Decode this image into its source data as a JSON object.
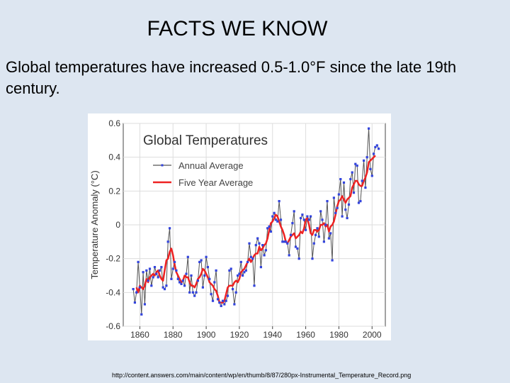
{
  "slide": {
    "title": "FACTS WE KNOW",
    "body": "Global temperatures have increased 0.5-1.0°F since the late 19th century.",
    "source": "http://content.answers.com/main/content/wp/en/thumb/8/87/280px-Instrumental_Temperature_Record.png"
  },
  "colors": {
    "background": "#dde6f1",
    "annual_line": "#555555",
    "annual_marker": "#3344dd",
    "five_year_line": "#ee2222",
    "grid": "#dddddd"
  },
  "chart_data": {
    "type": "line",
    "title": "Global Temperatures",
    "xlabel": "",
    "ylabel": "Temperature Anomaly (°C)",
    "xlim": [
      1850,
      2008
    ],
    "ylim": [
      -0.6,
      0.6
    ],
    "x_ticks": [
      1860,
      1880,
      1900,
      1920,
      1940,
      1960,
      1980,
      2000
    ],
    "y_ticks": [
      -0.6,
      -0.4,
      -0.2,
      0,
      0.2,
      0.4,
      0.6
    ],
    "grid": true,
    "legend_position": "top-left",
    "series": [
      {
        "name": "Annual Average",
        "style": "line-markers",
        "x": [
          1856,
          1857,
          1858,
          1859,
          1860,
          1861,
          1862,
          1863,
          1864,
          1865,
          1866,
          1867,
          1868,
          1869,
          1870,
          1871,
          1872,
          1873,
          1874,
          1875,
          1876,
          1877,
          1878,
          1879,
          1880,
          1881,
          1882,
          1883,
          1884,
          1885,
          1886,
          1887,
          1888,
          1889,
          1890,
          1891,
          1892,
          1893,
          1894,
          1895,
          1896,
          1897,
          1898,
          1899,
          1900,
          1901,
          1902,
          1903,
          1904,
          1905,
          1906,
          1907,
          1908,
          1909,
          1910,
          1911,
          1912,
          1913,
          1914,
          1915,
          1916,
          1917,
          1918,
          1919,
          1920,
          1921,
          1922,
          1923,
          1924,
          1925,
          1926,
          1927,
          1928,
          1929,
          1930,
          1931,
          1932,
          1933,
          1934,
          1935,
          1936,
          1937,
          1938,
          1939,
          1940,
          1941,
          1942,
          1943,
          1944,
          1945,
          1946,
          1947,
          1948,
          1949,
          1950,
          1951,
          1952,
          1953,
          1954,
          1955,
          1956,
          1957,
          1958,
          1959,
          1960,
          1961,
          1962,
          1963,
          1964,
          1965,
          1966,
          1967,
          1968,
          1969,
          1970,
          1971,
          1972,
          1973,
          1974,
          1975,
          1976,
          1977,
          1978,
          1979,
          1980,
          1981,
          1982,
          1983,
          1984,
          1985,
          1986,
          1987,
          1988,
          1989,
          1990,
          1991,
          1992,
          1993,
          1994,
          1995,
          1996,
          1997,
          1998,
          1999,
          2000,
          2001,
          2002,
          2003,
          2004
        ],
        "values": [
          -0.38,
          -0.46,
          -0.4,
          -0.22,
          -0.37,
          -0.53,
          -0.28,
          -0.47,
          -0.27,
          -0.33,
          -0.26,
          -0.36,
          -0.31,
          -0.25,
          -0.29,
          -0.31,
          -0.27,
          -0.25,
          -0.37,
          -0.38,
          -0.36,
          -0.1,
          -0.02,
          -0.32,
          -0.26,
          -0.22,
          -0.27,
          -0.32,
          -0.34,
          -0.35,
          -0.33,
          -0.36,
          -0.29,
          -0.19,
          -0.4,
          -0.3,
          -0.4,
          -0.42,
          -0.4,
          -0.33,
          -0.22,
          -0.21,
          -0.37,
          -0.3,
          -0.19,
          -0.25,
          -0.32,
          -0.41,
          -0.45,
          -0.34,
          -0.27,
          -0.44,
          -0.46,
          -0.48,
          -0.45,
          -0.47,
          -0.45,
          -0.42,
          -0.27,
          -0.26,
          -0.38,
          -0.47,
          -0.4,
          -0.3,
          -0.29,
          -0.22,
          -0.3,
          -0.28,
          -0.27,
          -0.22,
          -0.11,
          -0.19,
          -0.2,
          -0.36,
          -0.12,
          -0.08,
          -0.11,
          -0.25,
          -0.12,
          -0.18,
          -0.15,
          -0.02,
          -0.01,
          -0.04,
          0.05,
          0.07,
          0.03,
          0.02,
          0.14,
          0.03,
          -0.1,
          -0.1,
          -0.1,
          -0.11,
          -0.18,
          -0.06,
          0.01,
          0.08,
          -0.13,
          -0.14,
          -0.2,
          0.04,
          0.06,
          0.03,
          -0.03,
          0.05,
          0.03,
          0.05,
          -0.2,
          -0.11,
          -0.06,
          -0.02,
          -0.07,
          0.08,
          0.03,
          -0.1,
          0.0,
          0.14,
          -0.08,
          -0.05,
          -0.21,
          0.16,
          0.07,
          0.1,
          0.18,
          0.27,
          0.05,
          0.25,
          0.09,
          0.04,
          0.12,
          0.27,
          0.31,
          0.19,
          0.36,
          0.35,
          0.13,
          0.14,
          0.26,
          0.38,
          0.22,
          0.4,
          0.57,
          0.33,
          0.29,
          0.42,
          0.46,
          0.47,
          0.45
        ]
      },
      {
        "name": "Five Year Average",
        "style": "line",
        "x": [
          1858,
          1859,
          1860,
          1861,
          1862,
          1863,
          1864,
          1865,
          1866,
          1867,
          1868,
          1869,
          1870,
          1871,
          1872,
          1873,
          1874,
          1875,
          1876,
          1877,
          1878,
          1879,
          1880,
          1881,
          1882,
          1883,
          1884,
          1885,
          1886,
          1887,
          1888,
          1889,
          1890,
          1891,
          1892,
          1893,
          1894,
          1895,
          1896,
          1897,
          1898,
          1899,
          1900,
          1901,
          1902,
          1903,
          1904,
          1905,
          1906,
          1907,
          1908,
          1909,
          1910,
          1911,
          1912,
          1913,
          1914,
          1915,
          1916,
          1917,
          1918,
          1919,
          1920,
          1921,
          1922,
          1923,
          1924,
          1925,
          1926,
          1927,
          1928,
          1929,
          1930,
          1931,
          1932,
          1933,
          1934,
          1935,
          1936,
          1937,
          1938,
          1939,
          1940,
          1941,
          1942,
          1943,
          1944,
          1945,
          1946,
          1947,
          1948,
          1949,
          1950,
          1951,
          1952,
          1953,
          1954,
          1955,
          1956,
          1957,
          1958,
          1959,
          1960,
          1961,
          1962,
          1963,
          1964,
          1965,
          1966,
          1967,
          1968,
          1969,
          1970,
          1971,
          1972,
          1973,
          1974,
          1975,
          1976,
          1977,
          1978,
          1979,
          1980,
          1981,
          1982,
          1983,
          1984,
          1985,
          1986,
          1987,
          1988,
          1989,
          1990,
          1991,
          1992,
          1993,
          1994,
          1995,
          1996,
          1997,
          1998,
          1999,
          2000,
          2001,
          2002
        ],
        "values": [
          -0.37,
          -0.4,
          -0.36,
          -0.37,
          -0.38,
          -0.36,
          -0.32,
          -0.34,
          -0.31,
          -0.3,
          -0.29,
          -0.3,
          -0.28,
          -0.27,
          -0.3,
          -0.32,
          -0.33,
          -0.27,
          -0.21,
          -0.2,
          -0.16,
          -0.14,
          -0.18,
          -0.24,
          -0.28,
          -0.3,
          -0.32,
          -0.34,
          -0.33,
          -0.3,
          -0.31,
          -0.31,
          -0.34,
          -0.36,
          -0.36,
          -0.37,
          -0.35,
          -0.32,
          -0.31,
          -0.29,
          -0.26,
          -0.27,
          -0.29,
          -0.31,
          -0.34,
          -0.35,
          -0.36,
          -0.38,
          -0.39,
          -0.42,
          -0.46,
          -0.46,
          -0.46,
          -0.45,
          -0.41,
          -0.37,
          -0.36,
          -0.36,
          -0.36,
          -0.34,
          -0.33,
          -0.34,
          -0.32,
          -0.28,
          -0.27,
          -0.26,
          -0.24,
          -0.22,
          -0.2,
          -0.22,
          -0.2,
          -0.18,
          -0.17,
          -0.17,
          -0.13,
          -0.15,
          -0.14,
          -0.12,
          -0.11,
          -0.08,
          -0.03,
          0.01,
          0.02,
          0.04,
          0.06,
          0.05,
          0.02,
          -0.01,
          -0.03,
          -0.06,
          -0.1,
          -0.11,
          -0.09,
          -0.07,
          -0.06,
          -0.05,
          -0.08,
          -0.07,
          -0.06,
          -0.04,
          -0.05,
          -0.02,
          0.03,
          0.04,
          0.0,
          -0.05,
          -0.06,
          -0.03,
          -0.03,
          -0.04,
          -0.03,
          0.0,
          0.0,
          0.01,
          -0.01,
          -0.0,
          -0.04,
          -0.01,
          0.0,
          0.02,
          0.06,
          0.11,
          0.14,
          0.15,
          0.17,
          0.15,
          0.13,
          0.15,
          0.16,
          0.17,
          0.22,
          0.24,
          0.26,
          0.26,
          0.24,
          0.23,
          0.23,
          0.26,
          0.28,
          0.31,
          0.37,
          0.38,
          0.39,
          0.4,
          0.41
        ]
      }
    ]
  }
}
